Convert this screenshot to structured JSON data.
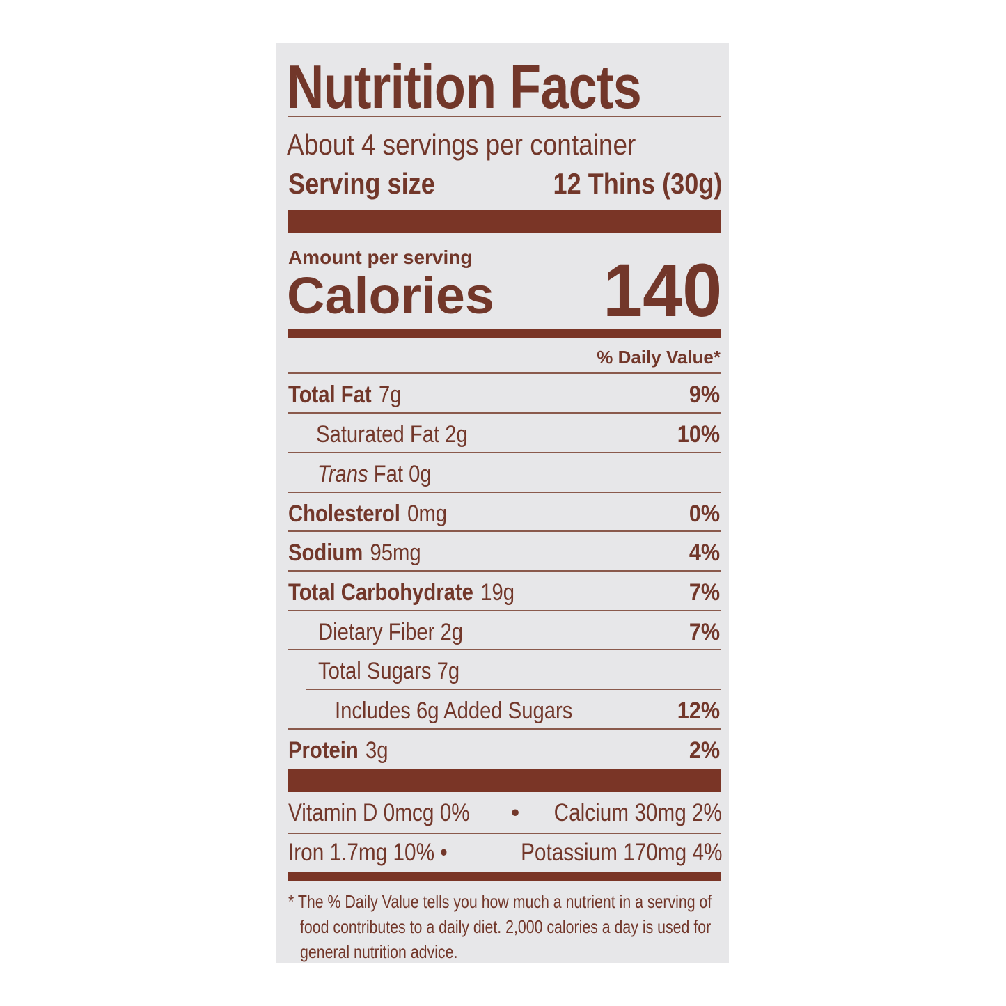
{
  "title": "Nutrition Facts",
  "servings_per_container": "About 4 servings per container",
  "serving_size_label": "Serving size",
  "serving_size_value": "12 Thins (30g)",
  "amount_per_serving": "Amount per serving",
  "calories_label": "Calories",
  "calories_value": "140",
  "daily_value_header": "% Daily Value*",
  "nutrients": [
    {
      "name": "Total Fat",
      "amount": "7g",
      "dv": "9%"
    },
    {
      "name": "Saturated Fat 2g",
      "amount": "",
      "dv": "10%"
    },
    {
      "name": "Trans",
      "amount": "Fat 0g",
      "dv": ""
    },
    {
      "name": "Cholesterol",
      "amount": "0mg",
      "dv": "0%"
    },
    {
      "name": "Sodium",
      "amount": "95mg",
      "dv": "4%"
    },
    {
      "name": "Total Carbohydrate",
      "amount": "19g",
      "dv": "7%"
    },
    {
      "name": "Dietary Fiber 2g",
      "amount": "",
      "dv": "7%"
    },
    {
      "name": "Total Sugars 7g",
      "amount": "",
      "dv": ""
    },
    {
      "name": "Includes 6g Added Sugars",
      "amount": "",
      "dv": "12%"
    },
    {
      "name": "Protein",
      "amount": "3g",
      "dv": "2%"
    }
  ],
  "vitamins": {
    "row1_left": "Vitamin D 0mcg  0%",
    "row1_sep": "•",
    "row1_right": "Calcium 30mg  2%",
    "row2_left": "Iron 1.7mg  10% •",
    "row2_right": "Potassium 170mg  4%"
  },
  "footnote": [
    "* The % Daily Value tells you how much a nutrient in a serving of",
    "food contributes to a daily diet. 2,000 calories a day is used for",
    "general nutrition advice."
  ],
  "colors": {
    "ink": "#72372a",
    "bar": "#7a3526",
    "background": "#e7e7e9"
  }
}
